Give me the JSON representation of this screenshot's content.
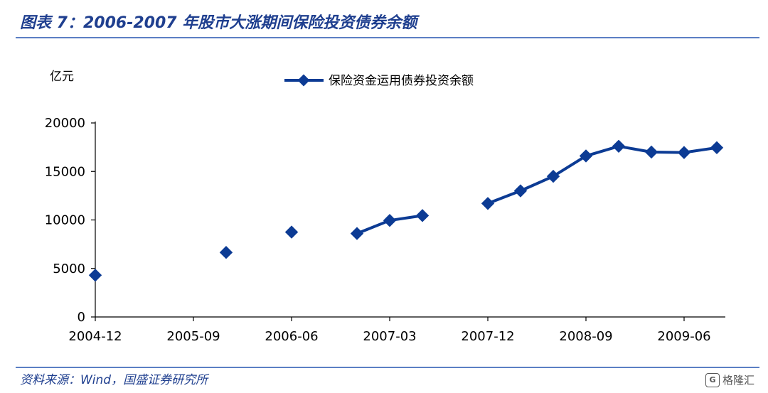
{
  "title": "图表 7：2006-2007 年股市大涨期间保险投资债券余额",
  "source": "资料来源：Wind，国盛证券研究所",
  "watermark": {
    "logo": "G",
    "text": "格隆汇"
  },
  "colors": {
    "series": "#0c3b94",
    "accent": "#1f3f8f"
  },
  "chart_data": {
    "type": "line",
    "unit_label": "亿元",
    "ylim": [
      0,
      20000
    ],
    "y_ticks": [
      0,
      5000,
      10000,
      15000,
      20000
    ],
    "x_tick_labels": [
      "2004-12",
      "2005-09",
      "2006-06",
      "2007-03",
      "2007-12",
      "2008-09",
      "2009-06"
    ],
    "grid": false,
    "legend_position": "top-center",
    "series": [
      {
        "name": "保险资金运用债券投资余额",
        "points": [
          {
            "x": "2004-12",
            "y": 4300
          },
          {
            "x": "2005-12",
            "y": 6650
          },
          {
            "x": "2006-06",
            "y": 8750
          },
          {
            "x": "2006-12",
            "y": 8600
          },
          {
            "x": "2007-03",
            "y": 9950
          },
          {
            "x": "2007-06",
            "y": 10450
          },
          {
            "x": "2007-12",
            "y": 11700
          },
          {
            "x": "2008-03",
            "y": 13000
          },
          {
            "x": "2008-06",
            "y": 14500
          },
          {
            "x": "2008-09",
            "y": 16600
          },
          {
            "x": "2008-12",
            "y": 17600
          },
          {
            "x": "2009-03",
            "y": 17000
          },
          {
            "x": "2009-06",
            "y": 16950
          },
          {
            "x": "2009-09",
            "y": 17450
          }
        ],
        "segments": [
          [
            0
          ],
          [
            1
          ],
          [
            2
          ],
          [
            3,
            4,
            5
          ],
          [
            6,
            7,
            8,
            9,
            10,
            11,
            12,
            13
          ]
        ]
      }
    ]
  }
}
